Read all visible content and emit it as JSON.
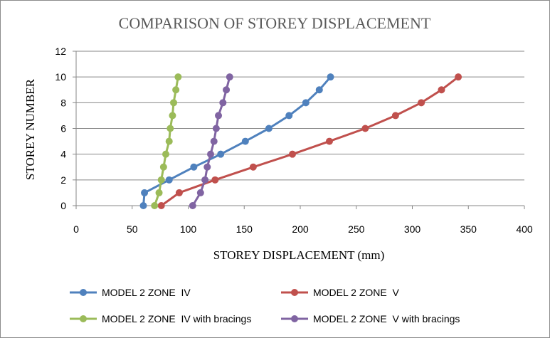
{
  "chart_data": {
    "type": "line",
    "title": "COMPARISON OF STOREY DISPLACEMENT",
    "xlabel": "STOREY DISPLACEMENT (mm)",
    "ylabel": "STOREY NUMBER",
    "xlim": [
      0,
      400
    ],
    "ylim": [
      0,
      12
    ],
    "x_ticks": [
      0,
      50,
      100,
      150,
      200,
      250,
      300,
      350,
      400
    ],
    "y_ticks": [
      0,
      2,
      4,
      6,
      8,
      10,
      12
    ],
    "grid": "major-horizontal",
    "legend_position": "bottom",
    "series": [
      {
        "name": "MODEL 2 ZONE  IV",
        "color": "#4f81bd",
        "points": [
          [
            60,
            0
          ],
          [
            61,
            1
          ],
          [
            83,
            2
          ],
          [
            105,
            3
          ],
          [
            129,
            4
          ],
          [
            151,
            5
          ],
          [
            172,
            6
          ],
          [
            190,
            7
          ],
          [
            205,
            8
          ],
          [
            217,
            9
          ],
          [
            227,
            10
          ]
        ]
      },
      {
        "name": "MODEL 2 ZONE  V",
        "color": "#c0504d",
        "points": [
          [
            76,
            0
          ],
          [
            92,
            1
          ],
          [
            124,
            2
          ],
          [
            158,
            3
          ],
          [
            193,
            4
          ],
          [
            226,
            5
          ],
          [
            258,
            6
          ],
          [
            285,
            7
          ],
          [
            308,
            8
          ],
          [
            326,
            9
          ],
          [
            341,
            10
          ]
        ]
      },
      {
        "name": "MODEL 2 ZONE  IV with bracings",
        "color": "#9bbb59",
        "points": [
          [
            70,
            0
          ],
          [
            74,
            1
          ],
          [
            76,
            2
          ],
          [
            78,
            3
          ],
          [
            80,
            4
          ],
          [
            83,
            5
          ],
          [
            84,
            6
          ],
          [
            86,
            7
          ],
          [
            87,
            8
          ],
          [
            89,
            9
          ],
          [
            91,
            10
          ]
        ]
      },
      {
        "name": "MODEL 2 ZONE  V with bracings",
        "color": "#8064a2",
        "points": [
          [
            104,
            0
          ],
          [
            111,
            1
          ],
          [
            115,
            2
          ],
          [
            117,
            3
          ],
          [
            120,
            4
          ],
          [
            123,
            5
          ],
          [
            125,
            6
          ],
          [
            127,
            7
          ],
          [
            131,
            8
          ],
          [
            134,
            9
          ],
          [
            137,
            10
          ]
        ]
      }
    ]
  }
}
